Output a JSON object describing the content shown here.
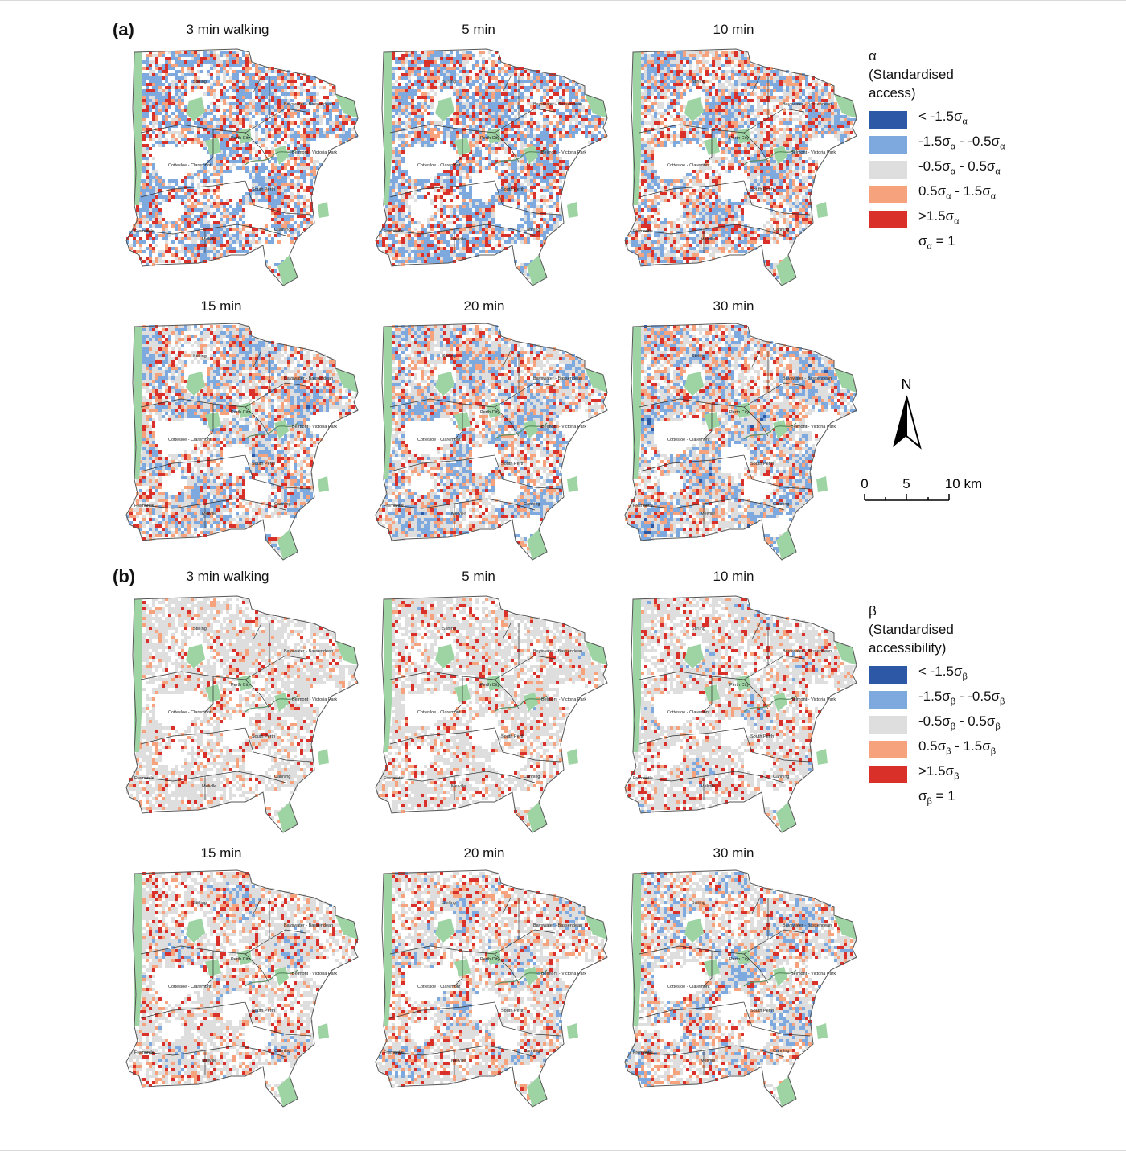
{
  "figure": {
    "panels": [
      {
        "label": "(a)",
        "maps": [
          {
            "title": "3 min walking",
            "scheme": {
              "red": 0.1,
              "orange": 0.1,
              "blue": 0.38,
              "dark": 0.0,
              "grey": 0.1
            }
          },
          {
            "title": "5 min",
            "scheme": {
              "red": 0.1,
              "orange": 0.09,
              "blue": 0.4,
              "dark": 0.0,
              "grey": 0.11
            }
          },
          {
            "title": "10 min",
            "scheme": {
              "red": 0.09,
              "orange": 0.11,
              "blue": 0.32,
              "dark": 0.0,
              "grey": 0.2
            }
          },
          {
            "title": "15 min",
            "scheme": {
              "red": 0.07,
              "orange": 0.11,
              "blue": 0.3,
              "dark": 0.01,
              "grey": 0.26
            }
          },
          {
            "title": "20 min",
            "scheme": {
              "red": 0.06,
              "orange": 0.11,
              "blue": 0.3,
              "dark": 0.01,
              "grey": 0.27
            }
          },
          {
            "title": "30 min",
            "scheme": {
              "red": 0.05,
              "orange": 0.12,
              "blue": 0.27,
              "dark": 0.05,
              "grey": 0.26
            }
          }
        ],
        "legend": {
          "symbol": "α",
          "title_lines": [
            "(Standardised",
            "access)"
          ],
          "sub": "α",
          "classes": [
            {
              "pre": "< -1.5σ",
              "mid": "",
              "post": "",
              "color": "#2d58a6"
            },
            {
              "pre": "-1.5σ",
              "mid": " - -0.5σ",
              "post": "",
              "color": "#7ea9de"
            },
            {
              "pre": "-0.5σ",
              "mid": " - 0.5σ",
              "post": "",
              "color": "#dedede"
            },
            {
              "pre": "0.5σ",
              "mid": " - 1.5σ",
              "post": "",
              "color": "#f6a27c"
            },
            {
              "pre": ">1.5σ",
              "mid": "",
              "post": "",
              "color": "#d9302a"
            }
          ],
          "sigma_note_pre": "σ",
          "sigma_note_post": " = 1"
        }
      },
      {
        "label": "(b)",
        "maps": [
          {
            "title": "3 min walking",
            "scheme": {
              "red": 0.04,
              "orange": 0.06,
              "blue": 0.02,
              "dark": 0.0,
              "grey": 0.55
            }
          },
          {
            "title": "5 min",
            "scheme": {
              "red": 0.05,
              "orange": 0.06,
              "blue": 0.03,
              "dark": 0.0,
              "grey": 0.53
            }
          },
          {
            "title": "10 min",
            "scheme": {
              "red": 0.06,
              "orange": 0.06,
              "blue": 0.12,
              "dark": 0.0,
              "grey": 0.44
            }
          },
          {
            "title": "15 min",
            "scheme": {
              "red": 0.06,
              "orange": 0.08,
              "blue": 0.16,
              "dark": 0.0,
              "grey": 0.38
            }
          },
          {
            "title": "20 min",
            "scheme": {
              "red": 0.06,
              "orange": 0.09,
              "blue": 0.18,
              "dark": 0.0,
              "grey": 0.35
            }
          },
          {
            "title": "30 min",
            "scheme": {
              "red": 0.06,
              "orange": 0.1,
              "blue": 0.22,
              "dark": 0.01,
              "grey": 0.3
            }
          }
        ],
        "legend": {
          "symbol": "β",
          "title_lines": [
            "(Standardised",
            "accessibility)"
          ],
          "sub": "β",
          "classes": [
            {
              "pre": "< -1.5σ",
              "mid": "",
              "post": "",
              "color": "#2d58a6"
            },
            {
              "pre": "-1.5σ",
              "mid": " - -0.5σ",
              "post": "",
              "color": "#7ea9de"
            },
            {
              "pre": "-0.5σ",
              "mid": " - 0.5σ",
              "post": "",
              "color": "#dedede"
            },
            {
              "pre": "0.5σ",
              "mid": " - 1.5σ",
              "post": "",
              "color": "#f6a27c"
            },
            {
              "pre": ">1.5σ",
              "mid": "",
              "post": "",
              "color": "#d9302a"
            }
          ],
          "sigma_note_pre": "σ",
          "sigma_note_post": " = 1"
        }
      }
    ],
    "place_names": [
      "Stirling",
      "Bayswater - Bassendean",
      "Perth City",
      "Belmont - Victoria Park",
      "Cottesloe - Claremont",
      "South Perth",
      "Canning",
      "Fremantle",
      "Melville"
    ],
    "north_label": "N",
    "scale": {
      "ticks": [
        "0",
        "5",
        "10 km"
      ]
    },
    "colors": {
      "dark_blue": "#2d58a6",
      "light_blue": "#7ea9de",
      "grey": "#dedede",
      "orange": "#f6a27c",
      "red": "#d9302a",
      "park_green": "#9ed4a3",
      "outline": "#555555"
    }
  }
}
